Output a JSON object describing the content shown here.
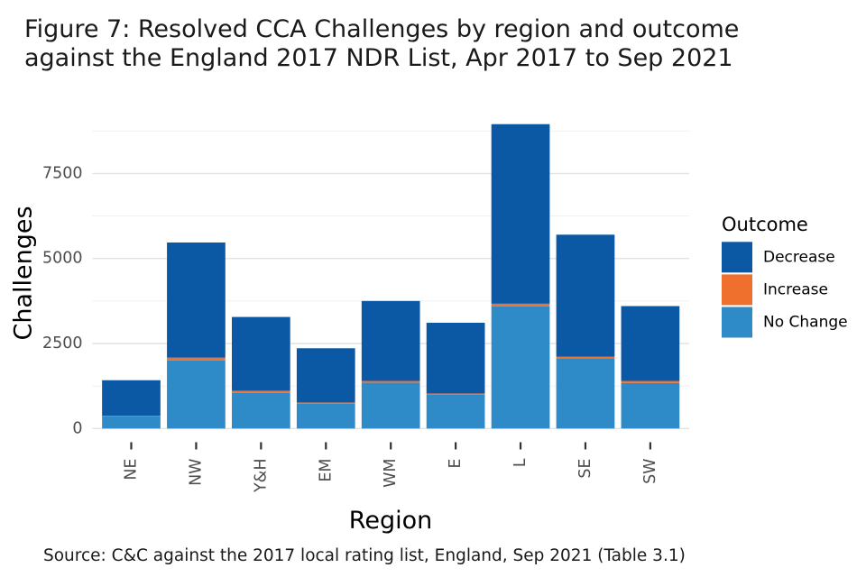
{
  "figure": {
    "title_line1": "Figure 7: Resolved CCA Challenges by region and outcome",
    "title_line2": "against the England 2017 NDR List, Apr 2017 to Sep 2021",
    "caption": "Source: C&C against the 2017 local rating list, England, Sep 2021 (Table 3.1)"
  },
  "chart_data": {
    "type": "bar",
    "stacked": true,
    "title": "Figure 7: Resolved CCA Challenges by region and outcome against the England 2017 NDR List, Apr 2017 to Sep 2021",
    "xlabel": "Region",
    "ylabel": "Challenges",
    "categories": [
      "NE",
      "NW",
      "Y&H",
      "EM",
      "WM",
      "E",
      "L",
      "SE",
      "SW"
    ],
    "series": [
      {
        "name": "No Change",
        "color": "#2e8bc8",
        "values": [
          360,
          2000,
          1050,
          725,
          1350,
          990,
          3590,
          2060,
          1340
        ]
      },
      {
        "name": "Increase",
        "color": "#ef702d",
        "values": [
          10,
          85,
          60,
          40,
          50,
          40,
          80,
          55,
          60
        ]
      },
      {
        "name": "Decrease",
        "color": "#0b58a5",
        "values": [
          1050,
          3385,
          2170,
          1595,
          2350,
          2080,
          5280,
          3585,
          2200
        ]
      }
    ],
    "legend": {
      "title": "Outcome",
      "position": "right",
      "entries": [
        "Decrease",
        "Increase",
        "No Change"
      ]
    },
    "yticks": [
      0,
      2500,
      5000,
      7500
    ],
    "yticks_minor": [
      1250,
      3750,
      6250,
      8750
    ],
    "ylim": [
      0,
      9400
    ],
    "grid": "major+minor",
    "colors": {
      "axis_text": "#4d4d4d",
      "axis_title": "#000000",
      "title": "#1a1a1a",
      "caption": "#1a1a1a",
      "grid_major": "#e3e3e3",
      "grid_minor": "#f0f0f0",
      "tick_mark": "#333333",
      "background": "#ffffff"
    }
  }
}
